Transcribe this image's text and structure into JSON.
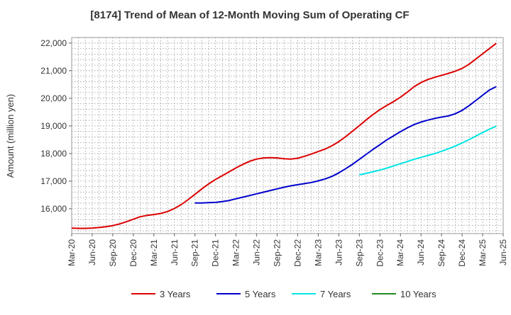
{
  "chart_data": {
    "type": "line",
    "title": "[8174]  Trend of Mean of 12-Month Moving Sum of Operating CF",
    "xlabel": "",
    "ylabel": "Amount (million yen)",
    "x_tick_labels": [
      "Mar-20",
      "Jun-20",
      "Sep-20",
      "Dec-20",
      "Mar-21",
      "Jun-21",
      "Sep-21",
      "Dec-21",
      "Mar-22",
      "Jun-22",
      "Sep-22",
      "Dec-22",
      "Mar-23",
      "Jun-23",
      "Sep-23",
      "Dec-23",
      "Mar-24",
      "Jun-24",
      "Sep-24",
      "Dec-24",
      "Mar-25",
      "Jun-25"
    ],
    "y_tick_values": [
      16000,
      17000,
      18000,
      19000,
      20000,
      21000,
      22000
    ],
    "y_tick_labels": [
      "16,000",
      "17,000",
      "18,000",
      "19,000",
      "20,000",
      "21,000",
      "22,000"
    ],
    "ylim": [
      15100,
      22200
    ],
    "x_unit": "months since Mar-20",
    "xlim": [
      0,
      63
    ],
    "grid": true,
    "legend_position": "bottom",
    "series": [
      {
        "name": "3 Years",
        "color": "#dd0000",
        "points": [
          [
            0,
            15300
          ],
          [
            1,
            15290
          ],
          [
            2,
            15290
          ],
          [
            3,
            15300
          ],
          [
            4,
            15320
          ],
          [
            5,
            15350
          ],
          [
            6,
            15390
          ],
          [
            7,
            15450
          ],
          [
            8,
            15530
          ],
          [
            9,
            15620
          ],
          [
            10,
            15710
          ],
          [
            11,
            15760
          ],
          [
            12,
            15790
          ],
          [
            13,
            15830
          ],
          [
            14,
            15900
          ],
          [
            15,
            16010
          ],
          [
            16,
            16150
          ],
          [
            17,
            16330
          ],
          [
            18,
            16520
          ],
          [
            19,
            16720
          ],
          [
            20,
            16900
          ],
          [
            21,
            17060
          ],
          [
            22,
            17200
          ],
          [
            23,
            17340
          ],
          [
            24,
            17480
          ],
          [
            25,
            17610
          ],
          [
            26,
            17720
          ],
          [
            27,
            17800
          ],
          [
            28,
            17840
          ],
          [
            29,
            17850
          ],
          [
            30,
            17840
          ],
          [
            31,
            17810
          ],
          [
            32,
            17800
          ],
          [
            33,
            17830
          ],
          [
            34,
            17900
          ],
          [
            35,
            17980
          ],
          [
            36,
            18070
          ],
          [
            37,
            18160
          ],
          [
            38,
            18280
          ],
          [
            39,
            18430
          ],
          [
            40,
            18610
          ],
          [
            41,
            18810
          ],
          [
            42,
            19010
          ],
          [
            43,
            19220
          ],
          [
            44,
            19410
          ],
          [
            45,
            19590
          ],
          [
            46,
            19740
          ],
          [
            47,
            19880
          ],
          [
            48,
            20040
          ],
          [
            49,
            20220
          ],
          [
            50,
            20420
          ],
          [
            51,
            20570
          ],
          [
            52,
            20680
          ],
          [
            53,
            20760
          ],
          [
            54,
            20830
          ],
          [
            55,
            20900
          ],
          [
            56,
            20980
          ],
          [
            57,
            21080
          ],
          [
            58,
            21230
          ],
          [
            59,
            21420
          ],
          [
            60,
            21610
          ],
          [
            61,
            21800
          ],
          [
            62,
            21990
          ]
        ]
      },
      {
        "name": "5 Years",
        "color": "#0000cc",
        "points": [
          [
            18,
            16210
          ],
          [
            19,
            16210
          ],
          [
            20,
            16220
          ],
          [
            21,
            16230
          ],
          [
            22,
            16260
          ],
          [
            23,
            16300
          ],
          [
            24,
            16360
          ],
          [
            25,
            16420
          ],
          [
            26,
            16480
          ],
          [
            27,
            16540
          ],
          [
            28,
            16600
          ],
          [
            29,
            16660
          ],
          [
            30,
            16720
          ],
          [
            31,
            16780
          ],
          [
            32,
            16830
          ],
          [
            33,
            16870
          ],
          [
            34,
            16910
          ],
          [
            35,
            16950
          ],
          [
            36,
            17010
          ],
          [
            37,
            17080
          ],
          [
            38,
            17170
          ],
          [
            39,
            17300
          ],
          [
            40,
            17450
          ],
          [
            41,
            17610
          ],
          [
            42,
            17790
          ],
          [
            43,
            17970
          ],
          [
            44,
            18150
          ],
          [
            45,
            18320
          ],
          [
            46,
            18490
          ],
          [
            47,
            18640
          ],
          [
            48,
            18790
          ],
          [
            49,
            18930
          ],
          [
            50,
            19050
          ],
          [
            51,
            19140
          ],
          [
            52,
            19210
          ],
          [
            53,
            19270
          ],
          [
            54,
            19320
          ],
          [
            55,
            19360
          ],
          [
            56,
            19440
          ],
          [
            57,
            19560
          ],
          [
            58,
            19730
          ],
          [
            59,
            19920
          ],
          [
            60,
            20110
          ],
          [
            61,
            20300
          ],
          [
            62,
            20420
          ]
        ]
      },
      {
        "name": "7 Years",
        "color": "#00e5e5",
        "points": [
          [
            42,
            17230
          ],
          [
            43,
            17280
          ],
          [
            44,
            17340
          ],
          [
            45,
            17400
          ],
          [
            46,
            17470
          ],
          [
            47,
            17550
          ],
          [
            48,
            17630
          ],
          [
            49,
            17710
          ],
          [
            50,
            17790
          ],
          [
            51,
            17860
          ],
          [
            52,
            17930
          ],
          [
            53,
            18000
          ],
          [
            54,
            18080
          ],
          [
            55,
            18170
          ],
          [
            56,
            18270
          ],
          [
            57,
            18380
          ],
          [
            58,
            18500
          ],
          [
            59,
            18630
          ],
          [
            60,
            18760
          ],
          [
            61,
            18880
          ],
          [
            62,
            18990
          ]
        ]
      },
      {
        "name": "10 Years",
        "color": "#228b22",
        "points": []
      }
    ]
  }
}
